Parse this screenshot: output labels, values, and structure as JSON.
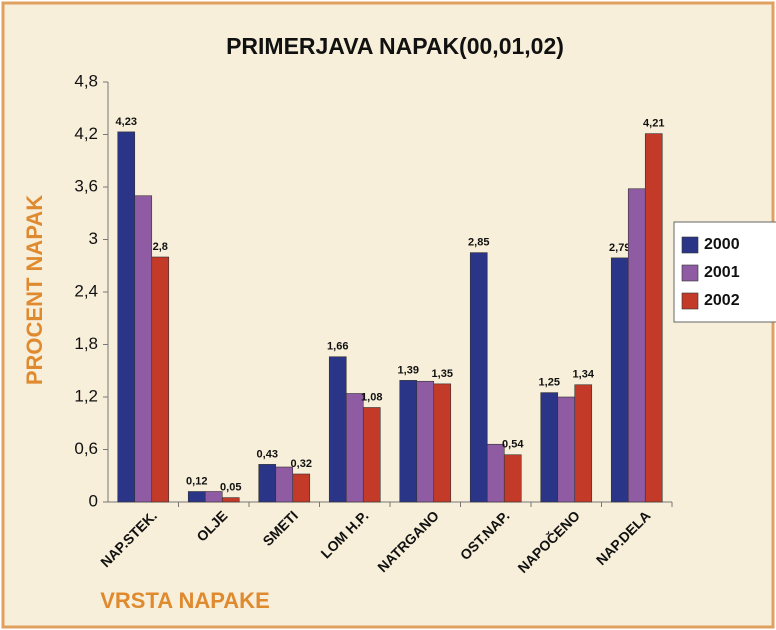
{
  "chart_data": {
    "type": "bar",
    "title": "PRIMERJAVA NAPAK(00,01,02)",
    "x_label": "VRSTA NAPAKE",
    "y_label": "PROCENT NAPAK",
    "categories": [
      "NAP.STEK.",
      "OLJE",
      "SMETI",
      "LOM H.P.",
      "NATRGANO",
      "OST.NAP.",
      "NAPOČENO",
      "NAP.DELA"
    ],
    "series": [
      {
        "name": "2000",
        "color": "#2b3587",
        "values": [
          4.23,
          0.12,
          0.43,
          1.66,
          1.39,
          2.85,
          1.25,
          2.79
        ],
        "value_labels": [
          "4,23",
          "0,12",
          "0,43",
          "1,66",
          "1,39",
          "2,85",
          "1,25",
          "2,79"
        ]
      },
      {
        "name": "2001",
        "color": "#8f5ba3",
        "values": [
          3.5,
          0.12,
          0.4,
          1.24,
          1.38,
          0.66,
          1.2,
          3.58
        ]
      },
      {
        "name": "2002",
        "color": "#c43a28",
        "values": [
          2.8,
          0.05,
          0.32,
          1.08,
          1.35,
          0.54,
          1.34,
          4.21
        ],
        "value_labels": [
          "2,8",
          "0,05",
          "0,32",
          "1,08",
          "1,35",
          "0,54",
          "1,34",
          "4,21"
        ]
      }
    ],
    "ylim": [
      0,
      4.8
    ],
    "yticks": [
      0,
      {
        "value": 0.6,
        "label": "0,6"
      },
      {
        "value": 1.2,
        "label": "1,2"
      },
      {
        "value": 1.8,
        "label": "1,8"
      },
      {
        "value": 2.4,
        "label": "2,4"
      },
      3,
      {
        "value": 3.6,
        "label": "3,6"
      },
      {
        "value": 4.2,
        "label": "4,2"
      },
      {
        "value": 4.8,
        "label": "4,8"
      }
    ]
  }
}
